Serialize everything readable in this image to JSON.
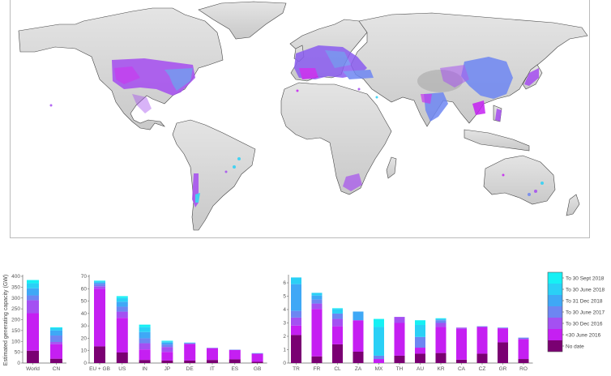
{
  "map": {
    "description": "World map of estimated solar generating capacity sites, colored by date of detection",
    "land_color": "#d4d4d4",
    "border_color": "#555555"
  },
  "legend": {
    "entries": [
      {
        "label": "To 30 Sept 2018",
        "color": "#16f0f4"
      },
      {
        "label": "To 30 June 2018",
        "color": "#2ad0f6"
      },
      {
        "label": "To 31 Dec 2018",
        "color": "#3fa8f6"
      },
      {
        "label": "To 30 June 2017",
        "color": "#6d86f2"
      },
      {
        "label": "To 30 Dec 2016",
        "color": "#a450f2"
      },
      {
        "label": "<30 June 2016",
        "color": "#c51ff2"
      },
      {
        "label": "No date",
        "color": "#7a0072"
      }
    ]
  },
  "chart_data": [
    {
      "type": "bar",
      "stacked": true,
      "title": "",
      "xlabel": "",
      "ylabel": "Estimated generating capacity (GW)",
      "ylim": [
        0,
        400
      ],
      "yticks": [
        0,
        50,
        100,
        150,
        200,
        250,
        300,
        350,
        400
      ],
      "categories": [
        "World",
        "CN"
      ],
      "series": [
        {
          "name": "No date",
          "values": [
            57,
            20
          ]
        },
        {
          "name": "<30 June 2016",
          "values": [
            173,
            67
          ]
        },
        {
          "name": "To 30 Dec 2016",
          "values": [
            60,
            10
          ]
        },
        {
          "name": "To 30 June 2017",
          "values": [
            22,
            30
          ]
        },
        {
          "name": "To 31 Dec 2018",
          "values": [
            33,
            23
          ]
        },
        {
          "name": "To 30 June 2018",
          "values": [
            23,
            11
          ]
        },
        {
          "name": "To 30 Sept 2018",
          "values": [
            15,
            4
          ]
        }
      ],
      "totals": [
        383,
        165
      ]
    },
    {
      "type": "bar",
      "stacked": true,
      "title": "",
      "xlabel": "",
      "ylabel": "",
      "ylim": [
        0,
        70
      ],
      "yticks": [
        0,
        10,
        20,
        30,
        40,
        50,
        60,
        70
      ],
      "categories": [
        "EU + GB",
        "US",
        "IN",
        "JP",
        "DE",
        "IT",
        "ES",
        "GB"
      ],
      "series": [
        {
          "name": "No date",
          "values": [
            13.5,
            8.5,
            2.5,
            2,
            2,
            2.5,
            3,
            1
          ]
        },
        {
          "name": "<30 June 2016",
          "values": [
            46.5,
            28,
            8.5,
            7,
            13.5,
            9.5,
            7.5,
            6.5
          ]
        },
        {
          "name": "To 30 Dec 2016",
          "values": [
            2,
            5,
            5,
            4,
            0,
            0,
            0,
            0
          ]
        },
        {
          "name": "To 30 June 2017",
          "values": [
            2,
            4,
            4,
            2,
            0.5,
            0.3,
            0.3,
            0.3
          ]
        },
        {
          "name": "To 31 Dec 2018",
          "values": [
            1,
            4,
            5,
            1.5,
            0.3,
            0,
            0,
            0.2
          ]
        },
        {
          "name": "To 30 June 2018",
          "values": [
            1,
            3,
            4,
            1,
            0.2,
            0,
            0,
            0
          ]
        },
        {
          "name": "To 30 Sept 2018",
          "values": [
            0.5,
            1.5,
            2,
            0.5,
            0,
            0,
            0,
            0
          ]
        }
      ],
      "totals": [
        66.5,
        54,
        31,
        18,
        16.5,
        12.3,
        10.8,
        8
      ]
    },
    {
      "type": "bar",
      "stacked": true,
      "title": "",
      "xlabel": "",
      "ylabel": "",
      "ylim": [
        0,
        6.5
      ],
      "yticks": [
        0,
        1,
        2,
        3,
        4,
        5,
        6
      ],
      "categories": [
        "TR",
        "FR",
        "CL",
        "ZA",
        "MX",
        "TH",
        "AU",
        "KR",
        "CA",
        "CZ",
        "GR",
        "RO"
      ],
      "series": [
        {
          "name": "No date",
          "values": [
            2.1,
            0.5,
            1.4,
            0.85,
            0,
            0.55,
            0.7,
            0.75,
            0.25,
            0.7,
            1.55,
            0.3
          ]
        },
        {
          "name": "<30 June 2016",
          "values": [
            0.7,
            3.55,
            1.35,
            2.35,
            0.3,
            2.45,
            0.45,
            1.95,
            2.3,
            2.0,
            1.05,
            1.5
          ]
        },
        {
          "name": "To 30 Dec 2016",
          "values": [
            0.6,
            0.4,
            0.55,
            0,
            0,
            0.45,
            0,
            0.3,
            0.1,
            0,
            0,
            0
          ]
        },
        {
          "name": "To 30 June 2017",
          "values": [
            0.5,
            0.3,
            0.4,
            0,
            0.25,
            0,
            0.8,
            0.2,
            0,
            0.05,
            0.05,
            0.1
          ]
        },
        {
          "name": "To 31 Dec 2018",
          "values": [
            2.0,
            0.3,
            0,
            0.65,
            0,
            0,
            0,
            0.05,
            0,
            0,
            0,
            0
          ]
        },
        {
          "name": "To 30 June 2018",
          "values": [
            0.5,
            0.2,
            0.35,
            0,
            2.15,
            0,
            0.9,
            0.05,
            0,
            0,
            0,
            0
          ]
        },
        {
          "name": "To 30 Sept 2018",
          "values": [
            0,
            0,
            0.05,
            0,
            0.6,
            0,
            0.35,
            0.05,
            0,
            0,
            0,
            0
          ]
        }
      ],
      "totals": [
        6.4,
        5.25,
        4.1,
        3.85,
        3.3,
        3.45,
        3.2,
        3.35,
        2.65,
        2.75,
        2.65,
        1.9
      ]
    }
  ]
}
